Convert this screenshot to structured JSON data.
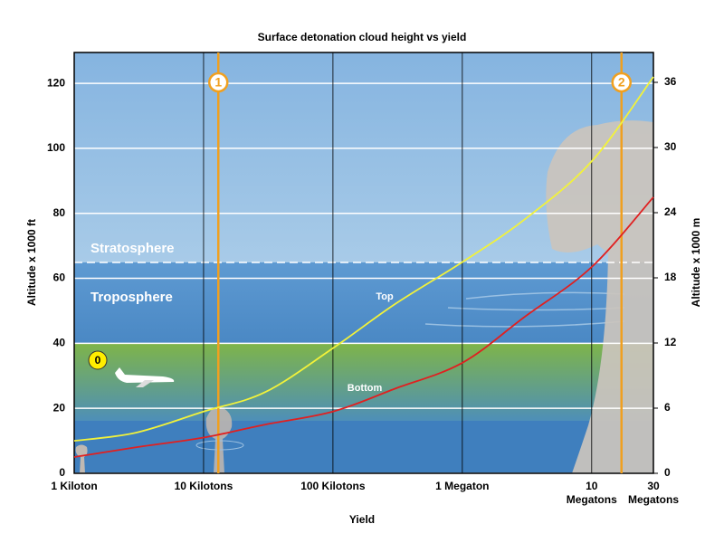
{
  "chart_data": {
    "type": "line",
    "title": "Surface detonation cloud height vs yield",
    "xlabel": "Yield",
    "ylabel": "Altitude x 1000 ft",
    "y2label": "Altitude x 1000 m",
    "xscale": "log",
    "x": [
      1,
      3,
      10,
      30,
      100,
      300,
      1000,
      3000,
      10000,
      30000
    ],
    "xlim": [
      1,
      30000
    ],
    "xticks": [
      {
        "value": 1,
        "label": "1 Kiloton"
      },
      {
        "value": 10,
        "label": "10 Kilotons"
      },
      {
        "value": 100,
        "label": "100 Kilotons"
      },
      {
        "value": 1000,
        "label": "1 Megaton"
      },
      {
        "value": 10000,
        "label": "10 Megatons"
      },
      {
        "value": 30000,
        "label": "30 Megatons"
      }
    ],
    "ylim": [
      0,
      129.5
    ],
    "yticks": [
      0,
      20,
      40,
      60,
      80,
      100,
      120
    ],
    "y2lim": [
      0,
      38.75
    ],
    "y2ticks": [
      0,
      6,
      12,
      18,
      24,
      30,
      36
    ],
    "series": [
      {
        "name": "Top",
        "color": "#f2f23a",
        "values": [
          10,
          12.5,
          19,
          25,
          38.5,
          52,
          65,
          78,
          96,
          122
        ]
      },
      {
        "name": "Bottom",
        "color": "#e02020",
        "values": [
          5,
          8,
          11,
          15,
          19,
          26,
          34,
          48,
          63.5,
          85
        ]
      }
    ],
    "layers": [
      "Stratosphere",
      "Troposphere"
    ],
    "annotations": [
      {
        "label": "0"
      },
      {
        "label": "1",
        "x": 13
      },
      {
        "label": "2",
        "x": 17000
      }
    ]
  }
}
